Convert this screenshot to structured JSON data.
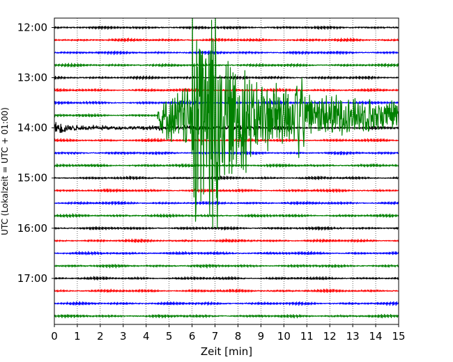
{
  "chart_data": {
    "type": "line",
    "title": "",
    "xlabel": "Zeit  [min]",
    "ylabel": "UTC (Lokalzeit = UTC + 01:00)",
    "xlim": [
      0,
      15
    ],
    "x_ticks": [
      "0",
      "1",
      "2",
      "3",
      "4",
      "5",
      "6",
      "7",
      "8",
      "9",
      "10",
      "11",
      "12",
      "13",
      "14",
      "15"
    ],
    "y_ticks": [
      "12:00",
      "13:00",
      "14:00",
      "15:00",
      "16:00",
      "17:00"
    ],
    "row_interval_minutes": 15,
    "row_start": "12:00",
    "row_count": 24,
    "trace_colors": [
      "#000000",
      "#ff0000",
      "#0000ff",
      "#008000"
    ],
    "grid": true,
    "events": [
      {
        "row_time": "13:45",
        "start_min": 4.5,
        "peak_min": 6.8,
        "end_min": 15,
        "description": "high-amplitude event (green trace), spans several rows"
      },
      {
        "row_time": "14:00",
        "start_min": 0.1,
        "end_min": 4.5,
        "description": "elevated amplitude at start of black trace"
      }
    ]
  }
}
